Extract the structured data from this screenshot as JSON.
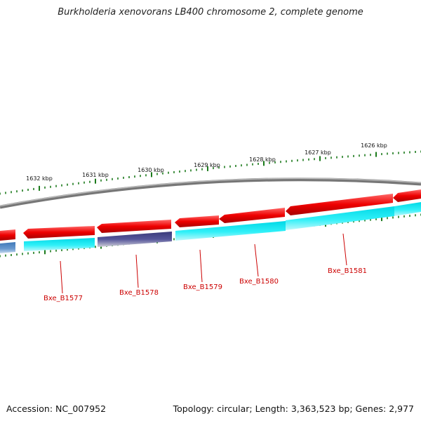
{
  "title": "Burkholderia xenovorans LB400 chromosome 2, complete genome",
  "footer": {
    "accession": "Accession: NC_007952",
    "summary": "Topology: circular; Length: 3,363,523 bp; Genes: 2,977"
  },
  "colors": {
    "tick": "#1b7a1b",
    "backbone": "#8a8a8a",
    "forward_gene": "#ee0000",
    "reverse_cds": "#22e8f0",
    "reverse_other": "#4a4a8c",
    "reverse_alt": "#4f86c0",
    "label": "#cc0000"
  },
  "kbp_labels": [
    "1632 kbp",
    "1631 kbp",
    "1630 kbp",
    "1629 kbp",
    "1628 kbp",
    "1627 kbp",
    "1626 kbp"
  ],
  "gene_labels": [
    "Bxe_B1577",
    "Bxe_B1578",
    "Bxe_B1579",
    "Bxe_B1580",
    "Bxe_B1581"
  ]
}
